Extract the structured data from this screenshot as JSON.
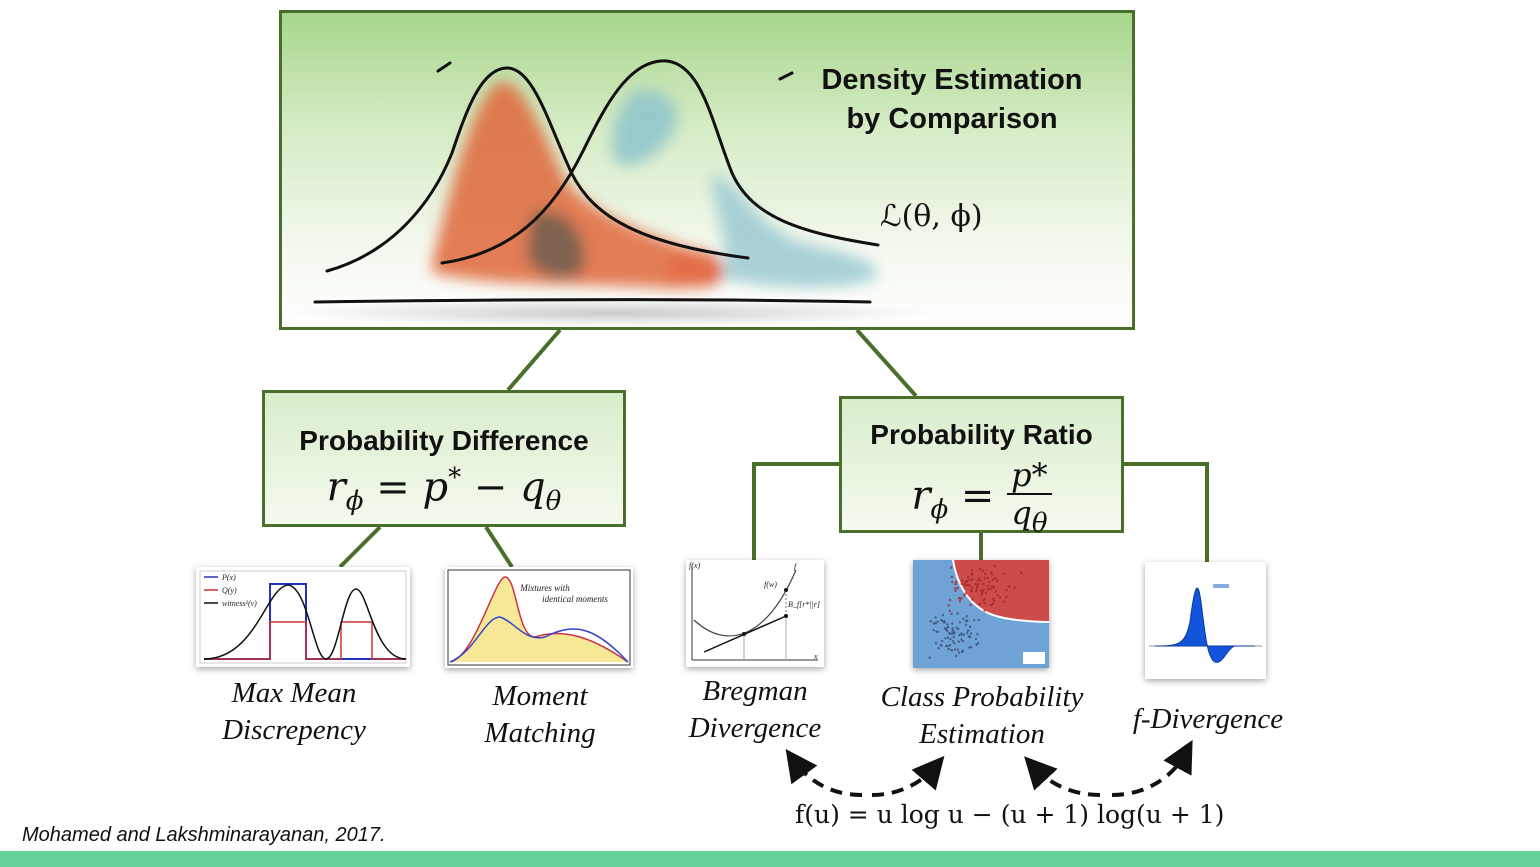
{
  "top": {
    "title_line1": "Density Estimation",
    "title_line2": "by Comparison",
    "formula": "ℒ(θ, ϕ)"
  },
  "difference": {
    "title": "Probability Difference",
    "formula_r": "r",
    "formula_phi": "ϕ",
    "formula_eq": " = p",
    "formula_star": "*",
    "formula_minus": " − q",
    "formula_theta": "θ"
  },
  "ratio": {
    "title": "Probability Ratio",
    "formula_r": "r",
    "formula_phi": "ϕ",
    "formula_eq": " = ",
    "num": "p*",
    "den_q": "q",
    "den_theta": "θ"
  },
  "methods": [
    {
      "line1": "Max Mean",
      "line2": "Discrepency"
    },
    {
      "line1": "Moment",
      "line2": "Matching"
    },
    {
      "line1": "Bregman",
      "line2": "Divergence"
    },
    {
      "line1": "Class Probability",
      "line2": "Estimation"
    },
    {
      "line1": "f-Divergence",
      "line2": ""
    }
  ],
  "mmd_legend": [
    "P(x)",
    "Q(y)",
    "witness²(v)"
  ],
  "moment_note": [
    "Mixtures with",
    "identical moments"
  ],
  "bregman_labels": {
    "fx": "f(x)",
    "fw": "f(w)",
    "f": "f",
    "B": "B_f[r*||r]",
    "x": "x"
  },
  "bottom_formula": "f(u) = u log u − (u + 1) log(u + 1)",
  "citation": "Mohamed and Lakshminarayanan, 2017.",
  "colors": {
    "box_border": "#4a6f2a",
    "bottom_bar": "#66d199",
    "orange": "#e0683a",
    "teal": "#8fc4cc"
  }
}
